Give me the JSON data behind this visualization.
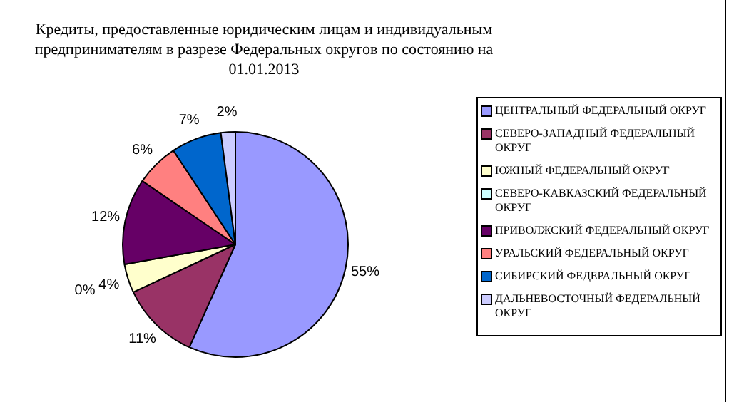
{
  "chart_data": {
    "type": "pie",
    "title": "Кредиты, предоставленные юридическим лицам и индивидуальным предпринимателям в разрезе Федеральных округов по состоянию на 01.01.2013",
    "categories": [
      "ЦЕНТРАЛЬНЫЙ ФЕДЕРАЛЬНЫЙ ОКРУГ",
      "СЕВЕРО-ЗАПАДНЫЙ ФЕДЕРАЛЬНЫЙ ОКРУГ",
      "ЮЖНЫЙ ФЕДЕРАЛЬНЫЙ ОКРУГ",
      "СЕВЕРО-КАВКАЗСКИЙ ФЕДЕРАЛЬНЫЙ ОКРУГ",
      "ПРИВОЛЖСКИЙ ФЕДЕРАЛЬНЫЙ ОКРУГ",
      "УРАЛЬСКИЙ ФЕДЕРАЛЬНЫЙ ОКРУГ",
      "СИБИРСКИЙ ФЕДЕРАЛЬНЫЙ ОКРУГ",
      "ДАЛЬНЕВОСТОЧНЫЙ ФЕДЕРАЛЬНЫЙ ОКРУГ"
    ],
    "values": [
      55,
      11,
      4,
      0,
      12,
      6,
      7,
      2
    ],
    "value_labels": [
      "55%",
      "11%",
      "4%",
      "0%",
      "12%",
      "6%",
      "7%",
      "2%"
    ],
    "colors": [
      "#9999ff",
      "#993366",
      "#ffffcc",
      "#ccffff",
      "#660066",
      "#ff8080",
      "#0066cc",
      "#ccccff"
    ],
    "legend": "right"
  }
}
